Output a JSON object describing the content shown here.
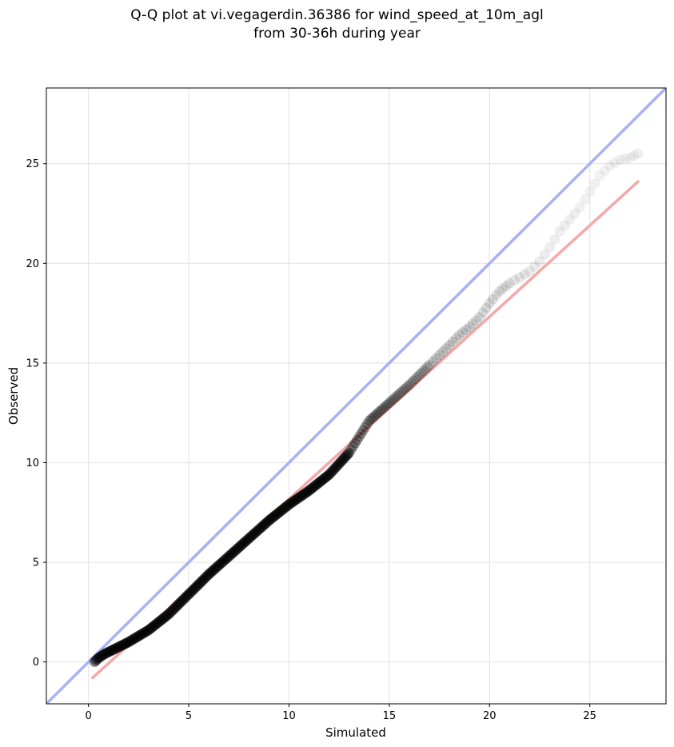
{
  "chart_data": {
    "type": "scatter",
    "title": "Q-Q plot at vi.vegagerdin.36386 for wind_speed_at_10m_agl",
    "subtitle": "from 30-36h during year",
    "xlabel": "Simulated",
    "ylabel": "Observed",
    "xlim": [
      -2.1,
      28.8
    ],
    "ylim": [
      -2.1,
      28.8
    ],
    "xticks": [
      0,
      5,
      10,
      15,
      20,
      25
    ],
    "yticks": [
      0,
      5,
      10,
      15,
      20,
      25
    ],
    "grid": true,
    "identity_line": {
      "color": "#aab0f5",
      "from": [
        -2.1,
        -2.1
      ],
      "to": [
        28.8,
        28.8
      ]
    },
    "fit_line": {
      "color": "#f5a8a8",
      "from": [
        0.2,
        -0.8
      ],
      "to": [
        27.4,
        24.1
      ]
    },
    "marker_color": "#000000",
    "quantile_points": [
      [
        0.3,
        0.0
      ],
      [
        0.5,
        0.2
      ],
      [
        0.8,
        0.4
      ],
      [
        1.2,
        0.6
      ],
      [
        1.6,
        0.8
      ],
      [
        2.0,
        1.0
      ],
      [
        2.5,
        1.3
      ],
      [
        3.0,
        1.6
      ],
      [
        3.5,
        2.0
      ],
      [
        4.0,
        2.4
      ],
      [
        4.5,
        2.9
      ],
      [
        5.0,
        3.4
      ],
      [
        6.0,
        4.4
      ],
      [
        7.0,
        5.3
      ],
      [
        8.0,
        6.2
      ],
      [
        9.0,
        7.1
      ],
      [
        10.0,
        7.9
      ],
      [
        11.0,
        8.6
      ],
      [
        12.0,
        9.4
      ],
      [
        13.0,
        10.5
      ],
      [
        13.5,
        11.3
      ],
      [
        14.0,
        12.1
      ],
      [
        15.0,
        13.0
      ],
      [
        16.0,
        13.9
      ],
      [
        16.5,
        14.4
      ],
      [
        17.0,
        14.9
      ],
      [
        17.5,
        15.4
      ],
      [
        18.0,
        15.9
      ],
      [
        18.5,
        16.4
      ],
      [
        19.0,
        16.8
      ],
      [
        19.5,
        17.3
      ],
      [
        20.0,
        18.0
      ],
      [
        20.5,
        18.6
      ],
      [
        21.0,
        19.0
      ],
      [
        21.5,
        19.3
      ],
      [
        22.0,
        19.6
      ],
      [
        22.5,
        20.1
      ],
      [
        23.0,
        20.8
      ],
      [
        23.5,
        21.6
      ],
      [
        24.0,
        22.2
      ],
      [
        24.5,
        22.8
      ],
      [
        25.0,
        23.6
      ],
      [
        25.5,
        24.4
      ],
      [
        26.0,
        24.9
      ],
      [
        26.5,
        25.2
      ],
      [
        27.0,
        25.3
      ],
      [
        27.4,
        25.5
      ]
    ]
  }
}
